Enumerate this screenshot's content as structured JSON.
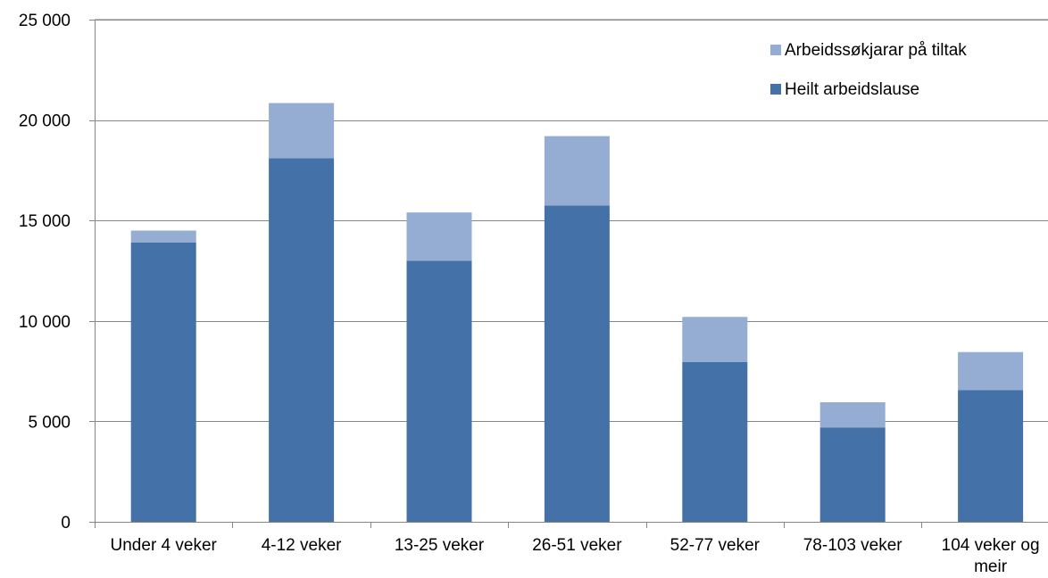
{
  "chart_data": {
    "type": "bar",
    "stacked": true,
    "categories": [
      "Under 4 veker",
      "4-12 veker",
      "13-25 veker",
      "26-51 veker",
      "52-77 veker",
      "78-103 veker",
      "104 veker og meir"
    ],
    "category_lines": [
      [
        "Under 4 veker"
      ],
      [
        "4-12 veker"
      ],
      [
        "13-25 veker"
      ],
      [
        "26-51 veker"
      ],
      [
        "52-77 veker"
      ],
      [
        "78-103 veker"
      ],
      [
        "104 veker og",
        "meir"
      ]
    ],
    "series": [
      {
        "name": "Heilt arbeidslause",
        "color": "#4472A8",
        "values": [
          13900,
          18100,
          13000,
          15750,
          7950,
          4700,
          6550
        ]
      },
      {
        "name": "Arbeidssøkjarar på tiltak",
        "color": "#95ACD3",
        "values": [
          600,
          2750,
          2400,
          3450,
          2250,
          1250,
          1900
        ]
      }
    ],
    "ylim": [
      0,
      25000
    ],
    "yticks": [
      0,
      5000,
      10000,
      15000,
      20000,
      25000
    ],
    "ytick_labels": [
      "0",
      "5 000",
      "10 000",
      "15 000",
      "20 000",
      "25 000"
    ],
    "grid": true,
    "legend_position": "top-right",
    "legend_order": [
      "Arbeidssøkjarar på tiltak",
      "Heilt arbeidslause"
    ],
    "title": "",
    "xlabel": "",
    "ylabel": ""
  }
}
